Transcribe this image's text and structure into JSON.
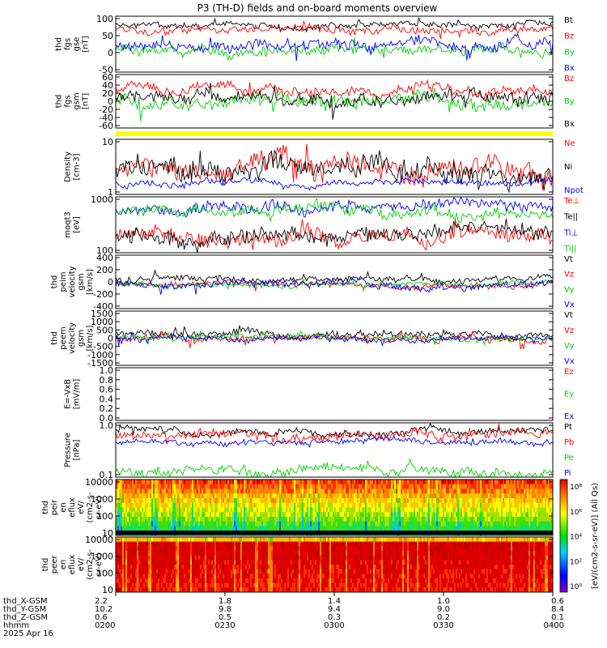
{
  "chart_data": {
    "type": "line",
    "title": "P3 (TH-D) fields and on-board moments overview",
    "panels": [
      {
        "ylabel": [
          "thd",
          "fgs",
          "gse",
          "[nT]"
        ],
        "yticks": [
          "100",
          "50",
          "0",
          "-50"
        ],
        "ylim": [
          -90,
          105
        ],
        "series": [
          {
            "name": "Bt",
            "color": "#000000",
            "base": 70,
            "amp": 14,
            "seed": 1
          },
          {
            "name": "Bz",
            "color": "#ff0000",
            "base": 62,
            "amp": 18,
            "seed": 2
          },
          {
            "name": "By",
            "color": "#00d000",
            "base": -10,
            "amp": 22,
            "seed": 3
          },
          {
            "name": "Bx",
            "color": "#0000ff",
            "base": 5,
            "amp": 25,
            "seed": 4
          }
        ]
      },
      {
        "ylabel": [
          "thd",
          "fgs",
          "gsm",
          "[nT]"
        ],
        "yticks": [
          "60",
          "40",
          "20",
          "0",
          "-20",
          "-40",
          "-60"
        ],
        "ylim": [
          -75,
          65
        ],
        "series": [
          {
            "name": "Bz",
            "color": "#ff0000",
            "base": 25,
            "amp": 18,
            "seed": 5
          },
          {
            "name": "By",
            "color": "#00d000",
            "base": 0,
            "amp": 22,
            "seed": 6
          },
          {
            "name": "Bx",
            "color": "#000000",
            "base": 10,
            "amp": 22,
            "seed": 7
          }
        ]
      },
      {
        "ylabel": [
          "Density",
          "[cm-3]"
        ],
        "yticks": [
          "10",
          "1"
        ],
        "ylim": [
          0.8,
          60
        ],
        "log": true,
        "series": [
          {
            "name": "Ne",
            "color": "#ff0000",
            "base": 6,
            "amp": 0.5,
            "seed": 8
          },
          {
            "name": "Ni",
            "color": "#000000",
            "base": 6.5,
            "amp": 0.5,
            "seed": 9
          },
          {
            "name": "Npot",
            "color": "#0000ff",
            "base": 2,
            "amp": 0.15,
            "seed": 10
          }
        ]
      },
      {
        "ylabel": [
          "moqt3",
          "[eV]"
        ],
        "yticks": [
          "1000",
          "100"
        ],
        "ylim": [
          50,
          4000
        ],
        "log": true,
        "series": [
          {
            "name": "Te⊥",
            "color": "#ff0000",
            "base": 200,
            "amp": 0.35,
            "seed": 11
          },
          {
            "name": "Te||",
            "color": "#000000",
            "base": 180,
            "amp": 0.35,
            "seed": 12
          },
          {
            "name": "Ti⊥",
            "color": "#0000ff",
            "base": 1500,
            "amp": 0.25,
            "seed": 13
          },
          {
            "name": "Ti||",
            "color": "#00d000",
            "base": 1200,
            "amp": 0.25,
            "seed": 14
          }
        ]
      },
      {
        "ylabel": [
          "thd",
          "peim",
          "velocity",
          "gsm",
          "[km/s]"
        ],
        "yticks": [
          "400",
          "200",
          "0",
          "-200",
          "-400"
        ],
        "ylim": [
          -420,
          500
        ],
        "series": [
          {
            "name": "Vt",
            "color": "#000000",
            "base": 90,
            "amp": 70,
            "seed": 15
          },
          {
            "name": "Vz",
            "color": "#ff0000",
            "base": 0,
            "amp": 60,
            "seed": 16
          },
          {
            "name": "Vy",
            "color": "#00d000",
            "base": 0,
            "amp": 55,
            "seed": 17
          },
          {
            "name": "Vx",
            "color": "#0000ff",
            "base": -20,
            "amp": 80,
            "seed": 18
          }
        ]
      },
      {
        "ylabel": [
          "thd",
          "peem",
          "velocity",
          "gsm",
          "[km/s]"
        ],
        "yticks": [
          "1500",
          "1000",
          "500",
          "0",
          "-500",
          "-1000",
          "-1500"
        ],
        "ylim": [
          -1500,
          1500
        ],
        "series": [
          {
            "name": "Vt",
            "color": "#000000",
            "base": 250,
            "amp": 280,
            "seed": 19
          },
          {
            "name": "Vz",
            "color": "#ff0000",
            "base": 0,
            "amp": 260,
            "seed": 20
          },
          {
            "name": "Vy",
            "color": "#00d000",
            "base": 0,
            "amp": 200,
            "seed": 21
          },
          {
            "name": "Vx",
            "color": "#0000ff",
            "base": 0,
            "amp": 200,
            "seed": 22
          }
        ]
      },
      {
        "ylabel": [
          "E=-VxB",
          "[mV/m]"
        ],
        "yticks": [
          "1.0",
          "0.8",
          "0.6",
          "0.4",
          "0.2",
          "0.0"
        ],
        "ylim": [
          0,
          1
        ],
        "series": [
          {
            "name": "Ez",
            "color": "#ff0000"
          },
          {
            "name": "Ey",
            "color": "#00d000"
          },
          {
            "name": "Ex",
            "color": "#0000ff"
          }
        ]
      },
      {
        "ylabel": [
          "Pressure",
          "[nPa]"
        ],
        "yticks": [
          "1.0",
          "0.1"
        ],
        "ylim": [
          0.06,
          3
        ],
        "log": true,
        "series": [
          {
            "name": "Pt",
            "color": "#000000",
            "base": 1.6,
            "amp": 0.15,
            "seed": 23
          },
          {
            "name": "Pb",
            "color": "#ff0000",
            "base": 1.2,
            "amp": 0.2,
            "seed": 24
          },
          {
            "name": "Pe",
            "color": "#00d000",
            "base": 0.1,
            "amp": 0.2,
            "seed": 25
          },
          {
            "name": "Pi",
            "color": "#0000ff",
            "base": 0.8,
            "amp": 0.12,
            "seed": 26
          }
        ]
      },
      {
        "ylabel": [
          "thd",
          "peir",
          "en",
          "eflux",
          "eV/",
          "(cm2-s-",
          "sr-eV)"
        ],
        "yticks": [
          "10000",
          "1000",
          "100",
          "10"
        ]
      },
      {
        "ylabel": [
          "thd",
          "peer",
          "en",
          "eflux",
          "eV/",
          "(cm2-s-",
          "sr-eV)"
        ],
        "yticks": [
          "10000",
          "1000",
          "100",
          "10"
        ]
      }
    ],
    "colorbar": {
      "label": "[eV/(cm2-s-sr-eV)] (All Qs)",
      "ticks": [
        "10⁸",
        "10⁶",
        "10⁴",
        "10²",
        "10⁰"
      ]
    },
    "xaxis": {
      "row_labels": [
        "thd_X-GSM",
        "thd_Y-GSM",
        "thd_Z-GSM",
        "hhmm",
        "2025 Apr 16"
      ],
      "ticks": [
        {
          "values": [
            "2.2",
            "10.2",
            "0.6",
            "0200"
          ]
        },
        {
          "values": [
            "1.8",
            "9.8",
            "0.5",
            "0230"
          ]
        },
        {
          "values": [
            "1.4",
            "9.4",
            "0.3",
            "0300"
          ]
        },
        {
          "values": [
            "1.0",
            "9.0",
            "0.2",
            "0330"
          ]
        },
        {
          "values": [
            "0.6",
            "8.4",
            "0.1",
            "0400"
          ]
        }
      ]
    }
  }
}
